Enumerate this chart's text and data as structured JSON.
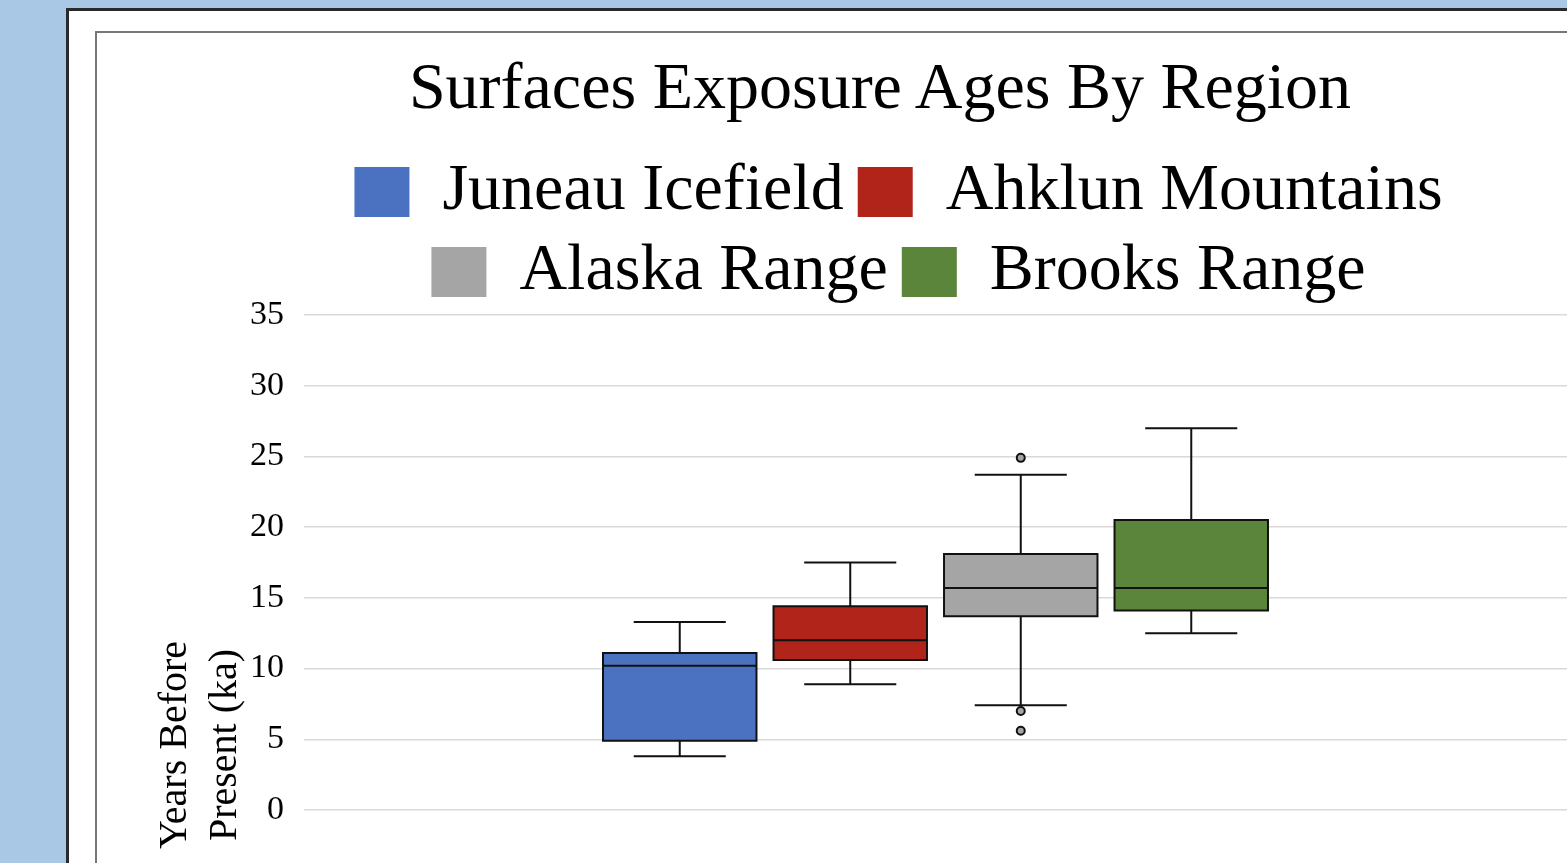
{
  "chart_data": {
    "type": "box",
    "title": "Surfaces Exposure Ages By Region",
    "ylabel": "Years Before Present  (ka)",
    "categories": [
      null
    ],
    "series": [
      {
        "name": "Juneau Icefield",
        "color": "#4a72c0",
        "boxes": [
          {
            "low": 3.8,
            "q1": 4.9,
            "median": 10.2,
            "q3": 11.1,
            "high": 13.3
          }
        ]
      },
      {
        "name": "Ahklun Mountains",
        "color": "#b0241a",
        "boxes": [
          {
            "low": 8.9,
            "q1": 10.6,
            "median": 12.0,
            "q3": 14.4,
            "high": 17.5
          }
        ]
      },
      {
        "name": "Alaska Range",
        "color": "#a5a5a5",
        "boxes": [
          {
            "low": 7.4,
            "q1": 13.7,
            "median": 15.7,
            "q3": 18.1,
            "high": 23.7,
            "outliers": [
              24.9,
              7.0,
              5.6
            ]
          }
        ]
      },
      {
        "name": "Brooks Range",
        "color": "#5b853a",
        "boxes": [
          {
            "low": 12.5,
            "q1": 14.1,
            "median": 15.7,
            "q3": 20.5,
            "high": 27.0
          }
        ]
      }
    ],
    "ylim": [
      0,
      35
    ],
    "yticks": [
      0,
      5,
      10,
      15,
      20,
      25,
      30,
      35
    ],
    "grid": "y",
    "legend": "top",
    "tick_labels": "y"
  }
}
